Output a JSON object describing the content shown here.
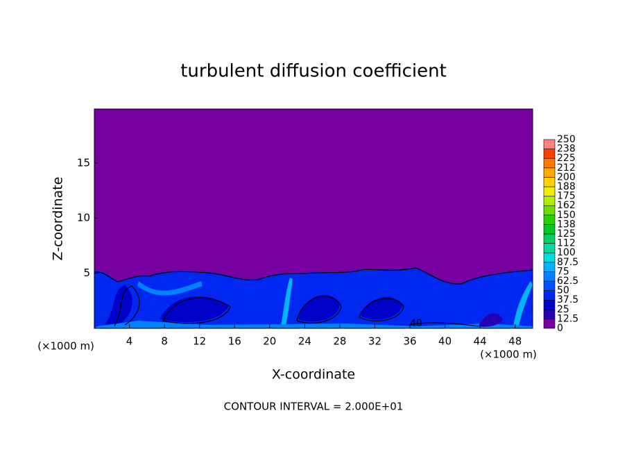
{
  "chart_data": {
    "type": "contour",
    "title": "turbulent diffusion coefficient",
    "x_label": "X-coordinate",
    "y_label": "Z-coordinate",
    "x_unit_labels": [
      "(×1000 m)",
      "(×1000 m)"
    ],
    "xlim": [
      0,
      50
    ],
    "ylim": [
      0,
      19.9
    ],
    "xticks": [
      4,
      8,
      12,
      16,
      20,
      24,
      28,
      32,
      36,
      40,
      44,
      48
    ],
    "yticks": [
      5,
      10,
      15
    ],
    "note": "CONTOUR INTERVAL = 2.000E+01",
    "contour_label": "40",
    "colorbar": {
      "levels": [
        0,
        12.5,
        25,
        37.5,
        50,
        62.5,
        75,
        87.5,
        100,
        112,
        125,
        138,
        150,
        162,
        175,
        188,
        200,
        212,
        225,
        238,
        250
      ],
      "colors": [
        "#7800a0",
        "#2800b4",
        "#0000c8",
        "#0028f0",
        "#0050ff",
        "#0082ff",
        "#00b4ff",
        "#00dcdc",
        "#00dca0",
        "#00d264",
        "#00c828",
        "#28d200",
        "#6edc00",
        "#b4ec00",
        "#f0f000",
        "#ffd200",
        "#ffaa00",
        "#ff7800",
        "#ff3c00",
        "#ff8080"
      ]
    }
  }
}
